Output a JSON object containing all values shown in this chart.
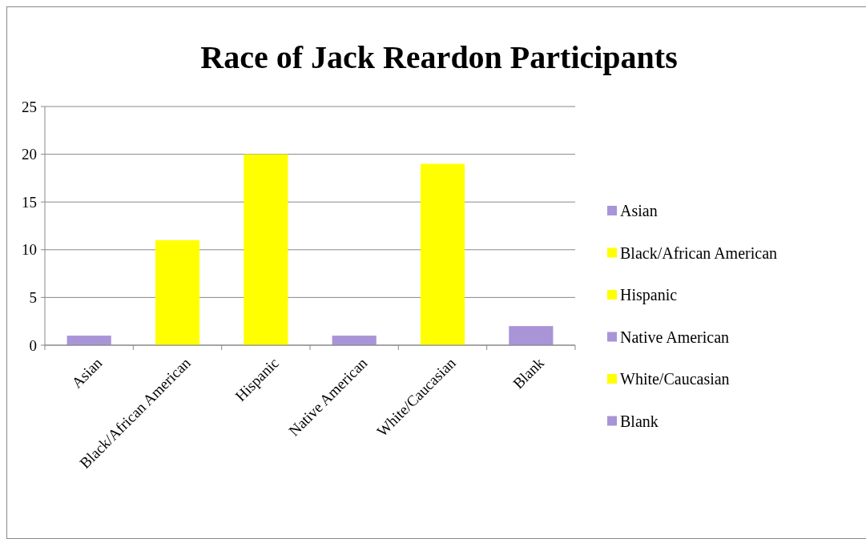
{
  "chart_data": {
    "type": "bar",
    "title": "Race of Jack Reardon Participants",
    "categories": [
      "Asian",
      "Black/African American",
      "Hispanic",
      "Native American",
      "White/Caucasian",
      "Blank"
    ],
    "series": [
      {
        "name": "Asian",
        "color": "#a994d8",
        "values": [
          1,
          null,
          null,
          null,
          null,
          null
        ]
      },
      {
        "name": "Black/African American",
        "color": "#ffff00",
        "values": [
          null,
          11,
          null,
          null,
          null,
          null
        ]
      },
      {
        "name": "Hispanic",
        "color": "#ffff00",
        "values": [
          null,
          null,
          20,
          null,
          null,
          null
        ]
      },
      {
        "name": "Native American",
        "color": "#a994d8",
        "values": [
          null,
          null,
          null,
          1,
          null,
          null
        ]
      },
      {
        "name": "White/Caucasian",
        "color": "#ffff00",
        "values": [
          null,
          null,
          null,
          null,
          19,
          null
        ]
      },
      {
        "name": "Blank",
        "color": "#a994d8",
        "values": [
          null,
          null,
          null,
          null,
          null,
          2
        ]
      }
    ],
    "ylim": [
      0,
      25
    ],
    "yticks": [
      0,
      5,
      10,
      15,
      20,
      25
    ],
    "grid": "y",
    "legend": "right"
  }
}
